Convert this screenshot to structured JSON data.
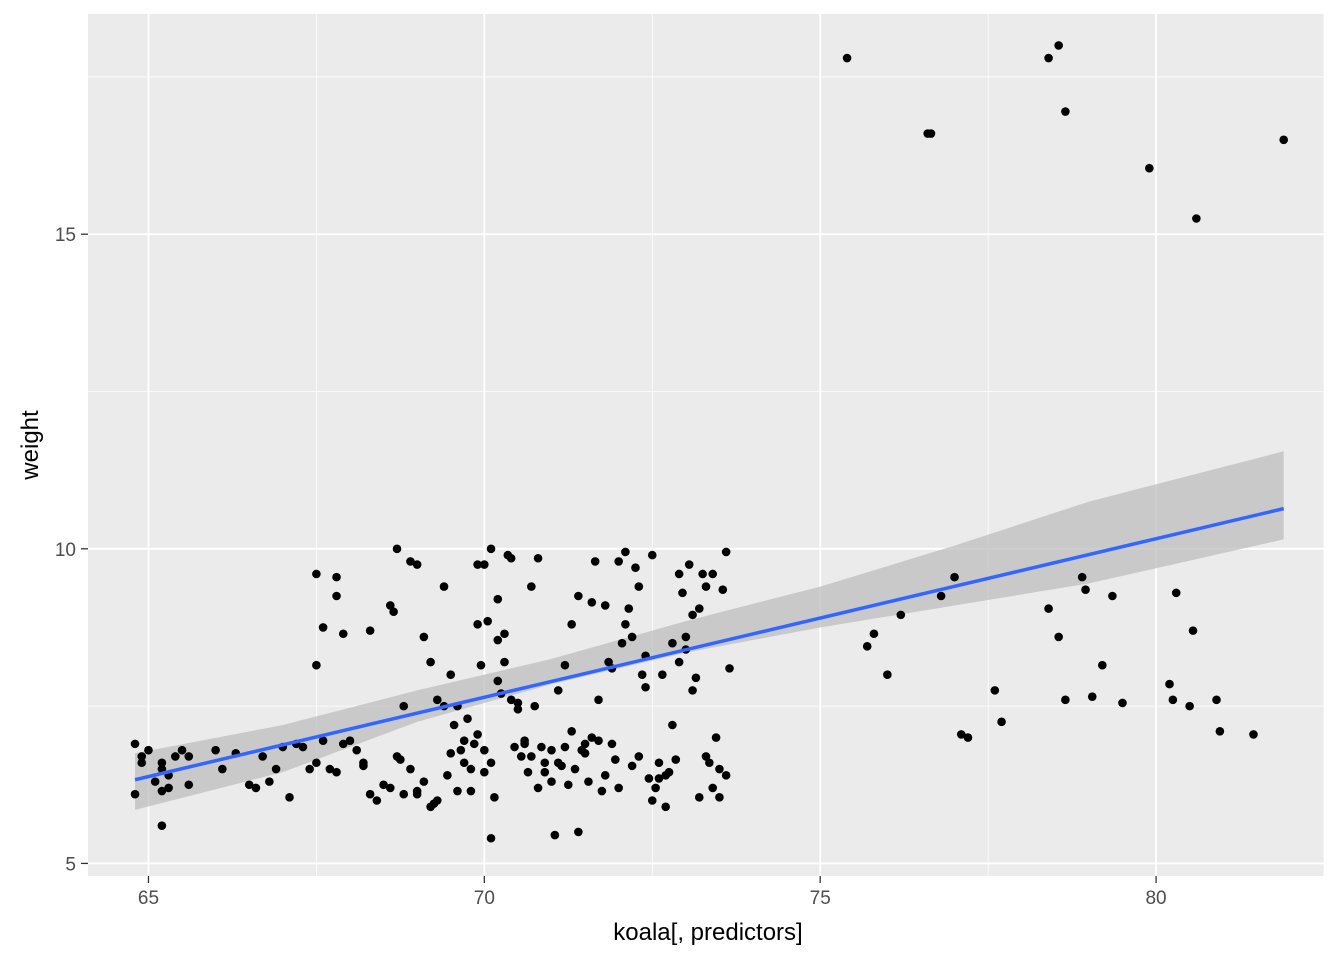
{
  "chart_data": {
    "type": "scatter",
    "title": "",
    "xlabel": "koala[, predictors]",
    "ylabel": "weight",
    "xlim": [
      64.1,
      82.5
    ],
    "ylim": [
      4.8,
      18.5
    ],
    "x_ticks": [
      65,
      70,
      75,
      80
    ],
    "y_ticks": [
      5,
      10,
      15
    ],
    "grid": true,
    "legend": "none",
    "colors": {
      "panel": "#ebebeb",
      "grid": "#ffffff",
      "points": "#000000",
      "fit_line": "#3366ff",
      "confidence_band": "#bdbdbd"
    },
    "points": [
      [
        64.8,
        6.9
      ],
      [
        64.9,
        6.6
      ],
      [
        64.9,
        6.7
      ],
      [
        65.0,
        6.8
      ],
      [
        64.8,
        6.1
      ],
      [
        65.1,
        6.3
      ],
      [
        65.2,
        6.6
      ],
      [
        65.2,
        6.5
      ],
      [
        65.3,
        6.4
      ],
      [
        65.4,
        6.7
      ],
      [
        65.5,
        6.8
      ],
      [
        65.6,
        6.7
      ],
      [
        65.2,
        6.15
      ],
      [
        65.3,
        6.2
      ],
      [
        65.6,
        6.25
      ],
      [
        65.2,
        5.6
      ],
      [
        66.0,
        6.8
      ],
      [
        66.1,
        6.5
      ],
      [
        66.3,
        6.75
      ],
      [
        66.5,
        6.25
      ],
      [
        66.6,
        6.2
      ],
      [
        66.7,
        6.7
      ],
      [
        66.8,
        6.3
      ],
      [
        66.9,
        6.5
      ],
      [
        67.0,
        6.85
      ],
      [
        67.1,
        6.05
      ],
      [
        67.2,
        6.9
      ],
      [
        67.3,
        6.85
      ],
      [
        67.4,
        6.5
      ],
      [
        67.5,
        6.6
      ],
      [
        67.6,
        6.95
      ],
      [
        67.7,
        6.5
      ],
      [
        67.8,
        6.45
      ],
      [
        67.5,
        9.6
      ],
      [
        67.8,
        9.55
      ],
      [
        67.6,
        8.75
      ],
      [
        67.8,
        9.25
      ],
      [
        67.9,
        8.65
      ],
      [
        67.5,
        8.15
      ],
      [
        67.9,
        6.9
      ],
      [
        68.0,
        6.95
      ],
      [
        68.1,
        6.8
      ],
      [
        68.2,
        6.6
      ],
      [
        68.3,
        8.7
      ],
      [
        68.6,
        9.1
      ],
      [
        68.65,
        9.0
      ],
      [
        68.7,
        10.0
      ],
      [
        68.8,
        6.1
      ],
      [
        68.9,
        6.5
      ],
      [
        69.0,
        6.15
      ],
      [
        69.0,
        6.1
      ],
      [
        69.1,
        6.3
      ],
      [
        69.2,
        5.9
      ],
      [
        69.3,
        6.0
      ],
      [
        69.4,
        7.5
      ],
      [
        69.5,
        6.75
      ],
      [
        69.6,
        6.15
      ],
      [
        69.7,
        6.6
      ],
      [
        69.8,
        6.15
      ],
      [
        69.9,
        9.75
      ],
      [
        70.0,
        9.75
      ],
      [
        70.1,
        10.0
      ],
      [
        70.2,
        8.55
      ],
      [
        70.3,
        8.65
      ],
      [
        70.4,
        7.6
      ],
      [
        70.5,
        7.55
      ],
      [
        70.6,
        6.95
      ],
      [
        70.7,
        9.4
      ],
      [
        70.8,
        6.2
      ],
      [
        70.9,
        6.45
      ],
      [
        71.0,
        6.3
      ],
      [
        71.1,
        6.6
      ],
      [
        71.2,
        6.85
      ],
      [
        71.3,
        8.8
      ],
      [
        71.4,
        5.5
      ],
      [
        71.5,
        6.9
      ],
      [
        71.6,
        7.0
      ],
      [
        71.7,
        7.6
      ],
      [
        71.8,
        6.4
      ],
      [
        71.9,
        8.1
      ],
      [
        72.0,
        9.8
      ],
      [
        72.1,
        9.95
      ],
      [
        72.2,
        8.6
      ],
      [
        72.3,
        9.4
      ],
      [
        72.4,
        7.8
      ],
      [
        72.5,
        9.9
      ],
      [
        72.6,
        6.35
      ],
      [
        72.7,
        6.4
      ],
      [
        72.8,
        8.5
      ],
      [
        72.9,
        8.2
      ],
      [
        73.0,
        8.4
      ],
      [
        73.1,
        7.75
      ],
      [
        73.2,
        6.05
      ],
      [
        73.3,
        6.7
      ],
      [
        73.4,
        6.2
      ],
      [
        73.5,
        6.5
      ],
      [
        69.9,
        7.05
      ],
      [
        70.0,
        6.8
      ],
      [
        70.0,
        6.45
      ],
      [
        70.1,
        5.4
      ],
      [
        70.15,
        6.05
      ],
      [
        70.2,
        7.9
      ],
      [
        70.2,
        9.2
      ],
      [
        70.3,
        8.2
      ],
      [
        70.4,
        9.85
      ],
      [
        70.5,
        7.45
      ],
      [
        70.6,
        6.9
      ],
      [
        70.7,
        6.7
      ],
      [
        70.75,
        7.5
      ],
      [
        70.8,
        9.85
      ],
      [
        70.9,
        6.6
      ],
      [
        71.0,
        6.8
      ],
      [
        71.05,
        5.45
      ],
      [
        71.1,
        7.75
      ],
      [
        71.2,
        8.15
      ],
      [
        71.3,
        7.1
      ],
      [
        71.4,
        9.25
      ],
      [
        71.45,
        6.8
      ],
      [
        71.5,
        6.75
      ],
      [
        71.6,
        9.15
      ],
      [
        71.7,
        6.95
      ],
      [
        71.8,
        9.1
      ],
      [
        71.9,
        6.9
      ],
      [
        72.0,
        6.2
      ],
      [
        72.05,
        8.5
      ],
      [
        72.1,
        8.8
      ],
      [
        72.15,
        9.05
      ],
      [
        72.2,
        6.55
      ],
      [
        72.3,
        6.7
      ],
      [
        72.4,
        8.3
      ],
      [
        72.5,
        6.0
      ],
      [
        72.55,
        6.2
      ],
      [
        72.6,
        6.6
      ],
      [
        72.7,
        5.9
      ],
      [
        72.75,
        6.45
      ],
      [
        72.8,
        7.2
      ],
      [
        72.9,
        9.6
      ],
      [
        73.0,
        8.6
      ],
      [
        73.1,
        8.95
      ],
      [
        73.2,
        9.05
      ],
      [
        73.3,
        9.4
      ],
      [
        73.4,
        9.6
      ],
      [
        73.5,
        6.05
      ],
      [
        73.6,
        6.4
      ],
      [
        68.2,
        6.55
      ],
      [
        68.3,
        6.1
      ],
      [
        68.4,
        6.0
      ],
      [
        68.5,
        6.25
      ],
      [
        68.6,
        6.2
      ],
      [
        68.7,
        6.7
      ],
      [
        68.75,
        6.65
      ],
      [
        68.8,
        7.5
      ],
      [
        68.9,
        9.8
      ],
      [
        69.0,
        9.75
      ],
      [
        69.1,
        8.6
      ],
      [
        69.2,
        8.2
      ],
      [
        69.3,
        7.6
      ],
      [
        69.4,
        9.4
      ],
      [
        69.5,
        8.0
      ],
      [
        69.55,
        7.2
      ],
      [
        69.6,
        7.5
      ],
      [
        69.7,
        6.95
      ],
      [
        69.8,
        6.5
      ],
      [
        69.85,
        6.9
      ],
      [
        69.9,
        8.8
      ],
      [
        69.95,
        8.15
      ],
      [
        70.05,
        8.85
      ],
      [
        70.1,
        6.6
      ],
      [
        70.25,
        7.7
      ],
      [
        70.35,
        9.9
      ],
      [
        70.45,
        6.85
      ],
      [
        70.55,
        6.7
      ],
      [
        70.65,
        6.45
      ],
      [
        70.85,
        6.85
      ],
      [
        71.15,
        6.55
      ],
      [
        71.25,
        6.25
      ],
      [
        71.35,
        6.5
      ],
      [
        71.55,
        6.3
      ],
      [
        71.65,
        9.8
      ],
      [
        71.75,
        6.15
      ],
      [
        71.85,
        8.2
      ],
      [
        71.95,
        6.65
      ],
      [
        72.25,
        9.7
      ],
      [
        72.35,
        8.0
      ],
      [
        72.45,
        6.35
      ],
      [
        72.65,
        8.0
      ],
      [
        72.85,
        6.65
      ],
      [
        72.95,
        9.3
      ],
      [
        73.05,
        9.75
      ],
      [
        73.15,
        7.95
      ],
      [
        73.25,
        9.6
      ],
      [
        73.35,
        6.6
      ],
      [
        73.45,
        7.0
      ],
      [
        73.55,
        9.35
      ],
      [
        73.6,
        9.95
      ],
      [
        73.65,
        8.1
      ],
      [
        69.25,
        5.95
      ],
      [
        69.45,
        6.4
      ],
      [
        69.65,
        6.8
      ],
      [
        69.75,
        7.3
      ],
      [
        75.4,
        17.8
      ],
      [
        76.6,
        16.6
      ],
      [
        76.65,
        16.6
      ],
      [
        78.4,
        17.8
      ],
      [
        78.55,
        18.0
      ],
      [
        78.65,
        16.95
      ],
      [
        79.9,
        16.05
      ],
      [
        80.6,
        15.25
      ],
      [
        81.9,
        16.5
      ],
      [
        75.7,
        8.45
      ],
      [
        75.8,
        8.65
      ],
      [
        76.0,
        8.0
      ],
      [
        76.2,
        8.95
      ],
      [
        76.8,
        9.25
      ],
      [
        77.0,
        9.55
      ],
      [
        77.1,
        7.05
      ],
      [
        77.2,
        7.0
      ],
      [
        77.6,
        7.75
      ],
      [
        77.7,
        7.25
      ],
      [
        78.4,
        9.05
      ],
      [
        78.55,
        8.6
      ],
      [
        78.65,
        7.6
      ],
      [
        78.9,
        9.55
      ],
      [
        78.95,
        9.35
      ],
      [
        79.05,
        7.65
      ],
      [
        79.2,
        8.15
      ],
      [
        79.35,
        9.25
      ],
      [
        79.5,
        7.55
      ],
      [
        80.2,
        7.85
      ],
      [
        80.25,
        7.6
      ],
      [
        80.3,
        9.3
      ],
      [
        80.5,
        7.5
      ],
      [
        80.55,
        8.7
      ],
      [
        80.9,
        7.6
      ],
      [
        80.95,
        7.1
      ],
      [
        81.45,
        7.05
      ]
    ],
    "fit": {
      "x_start": 64.8,
      "x_end": 81.9,
      "intercept": -10.0,
      "slope": 0.252,
      "band": [
        [
          64.8,
          5.85,
          6.75
        ],
        [
          67.0,
          6.45,
          7.2
        ],
        [
          69.0,
          7.25,
          7.75
        ],
        [
          71.0,
          7.85,
          8.25
        ],
        [
          73.0,
          8.35,
          8.85
        ],
        [
          75.0,
          8.75,
          9.4
        ],
        [
          77.0,
          9.1,
          10.05
        ],
        [
          79.0,
          9.45,
          10.75
        ],
        [
          81.9,
          10.15,
          11.55
        ]
      ]
    }
  }
}
